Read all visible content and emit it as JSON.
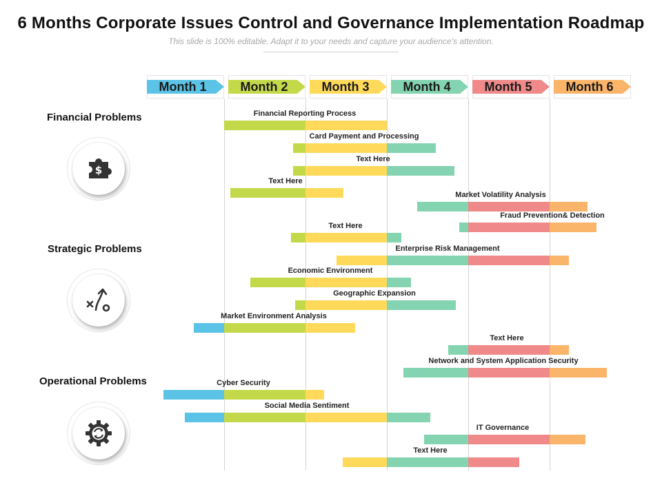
{
  "header": {
    "title": "6 Months Corporate Issues Control and Governance Implementation Roadmap",
    "subtitle": "This slide is 100% editable. Adapt it to your needs and capture your audience's attention."
  },
  "months": [
    {
      "label": "Month 1",
      "color": "#5bc3e6"
    },
    {
      "label": "Month 2",
      "color": "#c4d94a"
    },
    {
      "label": "Month 3",
      "color": "#fed95a"
    },
    {
      "label": "Month 4",
      "color": "#84d3b1"
    },
    {
      "label": "Month 5",
      "color": "#f08a8a"
    },
    {
      "label": "Month 6",
      "color": "#fbb56a"
    }
  ],
  "categories": [
    {
      "title": "Financial Problems",
      "icon": "puzzle-dollar-icon"
    },
    {
      "title": "Strategic Problems",
      "icon": "strategy-arrow-icon"
    },
    {
      "title": "Operational Problems",
      "icon": "gear-cycle-icon"
    }
  ],
  "tasks": [
    {
      "label": "Financial Reporting Process",
      "start": 1.0,
      "end": 3.0
    },
    {
      "label": "Card Payment and Processing",
      "start": 1.85,
      "end": 3.6
    },
    {
      "label": "Text Here",
      "start": 1.85,
      "end": 3.83
    },
    {
      "label": "Text Here",
      "start": 1.08,
      "end": 2.47
    },
    {
      "label": "Market Volatility Analysis",
      "start": 3.37,
      "end": 5.47
    },
    {
      "label": "Fraud Prevention& Detection",
      "start": 3.89,
      "end": 5.58
    },
    {
      "label": "Text Here",
      "start": 1.82,
      "end": 3.18
    },
    {
      "label": "Enterprise Risk Management",
      "start": 2.38,
      "end": 5.24
    },
    {
      "label": "Economic Environment",
      "start": 1.32,
      "end": 3.3
    },
    {
      "label": "Geographic Expansion",
      "start": 1.87,
      "end": 3.85
    },
    {
      "label": "Market Environment Analysis",
      "start": 0.63,
      "end": 2.61
    },
    {
      "label": "Text Here",
      "start": 3.75,
      "end": 5.24
    },
    {
      "label": "Network and System Application Security",
      "start": 3.2,
      "end": 5.7
    },
    {
      "label": "Cyber Security",
      "start": 0.25,
      "end": 2.23
    },
    {
      "label": "Social Media Sentiment",
      "start": 0.52,
      "end": 3.53
    },
    {
      "label": "IT Governance",
      "start": 3.46,
      "end": 5.44
    },
    {
      "label": "Text Here",
      "start": 2.46,
      "end": 4.63
    }
  ]
}
